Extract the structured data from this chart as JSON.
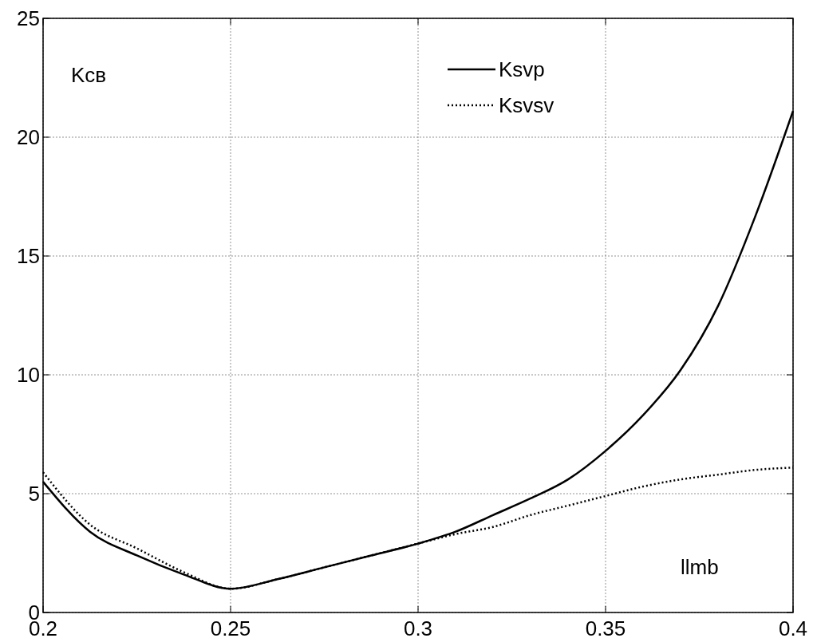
{
  "chart_data": {
    "type": "line",
    "xlabel": "llmb",
    "ylabel": "Kсв",
    "x": [
      0.2,
      0.2125,
      0.225,
      0.2375,
      0.25,
      0.2625,
      0.275,
      0.2875,
      0.3,
      0.31,
      0.32,
      0.33,
      0.34,
      0.35,
      0.36,
      0.37,
      0.38,
      0.39,
      0.4
    ],
    "series": [
      {
        "name": "Ksvp",
        "color": "#000000",
        "line_style": "solid",
        "values": [
          5.5,
          3.4,
          2.4,
          1.6,
          1.0,
          1.4,
          1.9,
          2.4,
          2.9,
          3.4,
          4.1,
          4.8,
          5.6,
          6.8,
          8.3,
          10.2,
          12.9,
          16.7,
          21.1
        ]
      },
      {
        "name": "Ksvsv",
        "color": "#000000",
        "line_style": "dotted",
        "values": [
          5.9,
          3.7,
          2.7,
          1.7,
          1.0,
          1.4,
          1.9,
          2.4,
          2.9,
          3.3,
          3.6,
          4.1,
          4.5,
          4.9,
          5.3,
          5.6,
          5.8,
          6.0,
          6.1
        ]
      }
    ],
    "xlim": [
      0.2,
      0.4
    ],
    "xticks": [
      0.2,
      0.25,
      0.3,
      0.35,
      0.4
    ],
    "ylim": [
      0,
      25
    ],
    "yticks": [
      0,
      5,
      10,
      15,
      20,
      25
    ],
    "grid": true,
    "legend": "top right"
  }
}
